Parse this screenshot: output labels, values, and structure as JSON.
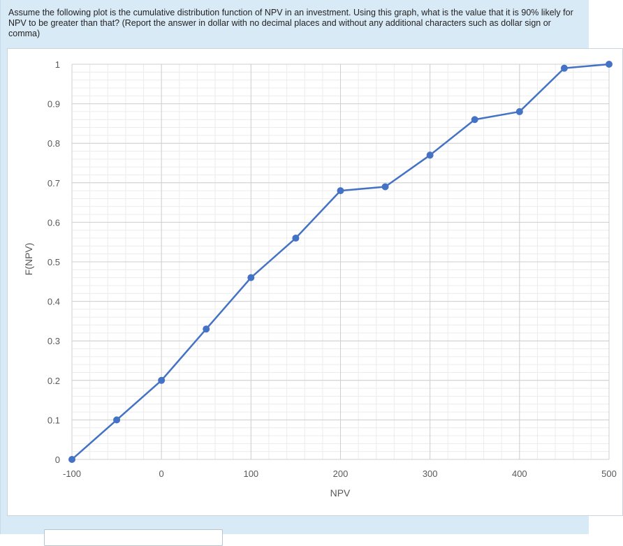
{
  "question": {
    "text": "Assume the following plot is the cumulative distribution function of NPV in an investment. Using this graph, what is the value that it is 90% likely for NPV to be greater than that? (Report the answer in dollar with no decimal places and without any additional characters such as dollar sign or comma)"
  },
  "answer": {
    "value": ""
  },
  "chart_data": {
    "type": "line",
    "title": "",
    "xlabel": "NPV",
    "ylabel": "F(NPV)",
    "xlim": [
      -100,
      500
    ],
    "ylim": [
      0,
      1
    ],
    "x_ticks": [
      -100,
      0,
      100,
      200,
      300,
      400,
      500
    ],
    "y_ticks": [
      0,
      0.1,
      0.2,
      0.3,
      0.4,
      0.5,
      0.6,
      0.7,
      0.8,
      0.9,
      1
    ],
    "x_tick_labels": [
      "-100",
      "0",
      "100",
      "200",
      "300",
      "400",
      "500"
    ],
    "y_tick_labels": [
      "0",
      "0.1",
      "0.2",
      "0.3",
      "0.4",
      "0.5",
      "0.6",
      "0.7",
      "0.8",
      "0.9",
      "1"
    ],
    "grid": true,
    "series_color": "#4472c4",
    "series": [
      {
        "x": [
          -100,
          -50,
          0,
          50,
          100,
          150,
          200,
          250,
          300,
          350,
          400,
          450,
          500
        ],
        "y": [
          0,
          0.1,
          0.2,
          0.33,
          0.46,
          0.56,
          0.68,
          0.69,
          0.77,
          0.86,
          0.88,
          0.99,
          1.0
        ]
      }
    ]
  }
}
